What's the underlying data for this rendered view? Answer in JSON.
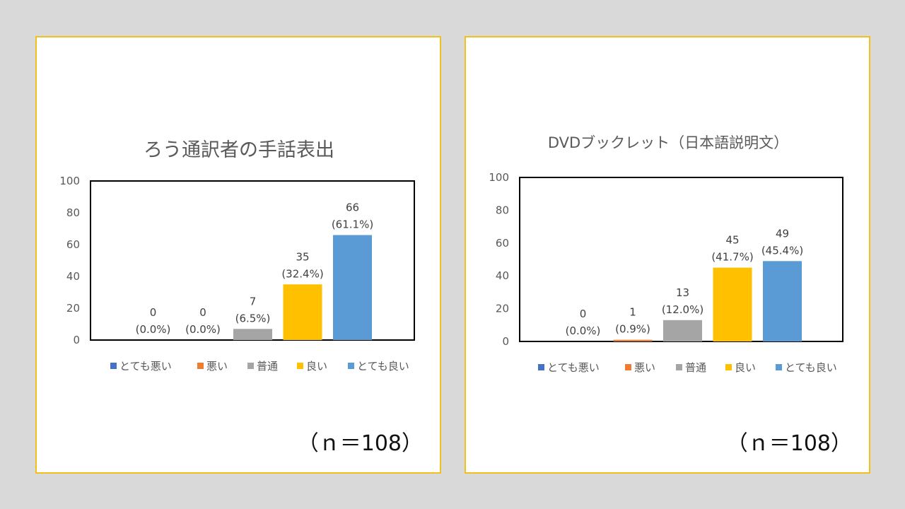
{
  "colors": {
    "background": "#d9d9d9",
    "panel_border": "#f0c020",
    "categories": [
      "#4472c4",
      "#ed7d31",
      "#a5a5a5",
      "#ffc000",
      "#5b9bd5"
    ]
  },
  "chart_data": [
    {
      "type": "bar",
      "title": "ろう通訳者の手話表出",
      "categories": [
        "とても悪い",
        "悪い",
        "普通",
        "良い",
        "とても良い"
      ],
      "values": [
        0,
        0,
        7,
        35,
        66
      ],
      "value_labels": [
        "0",
        "0",
        "7",
        "35",
        "66"
      ],
      "percent_labels": [
        "(0.0%)",
        "(0.0%)",
        "(6.5%)",
        "(32.4%)",
        "(61.1%)"
      ],
      "ylim": [
        0,
        100
      ],
      "yticks": [
        "0",
        "20",
        "40",
        "60",
        "80",
        "100"
      ],
      "legend": [
        "とても悪い",
        "悪い",
        "普通",
        "良い",
        "とても良い"
      ],
      "legend_position": "bottom",
      "grid": false,
      "note": "（ｎ＝108）"
    },
    {
      "type": "bar",
      "title": "DVDブックレット（日本語説明文）",
      "categories": [
        "とても悪い",
        "悪い",
        "普通",
        "良い",
        "とても良い"
      ],
      "values": [
        0,
        1,
        13,
        45,
        49
      ],
      "value_labels": [
        "0",
        "1",
        "13",
        "45",
        "49"
      ],
      "percent_labels": [
        "(0.0%)",
        "(0.9%)",
        "(12.0%)",
        "(41.7%)",
        "(45.4%)"
      ],
      "ylim": [
        0,
        100
      ],
      "yticks": [
        "0",
        "20",
        "40",
        "60",
        "80",
        "100"
      ],
      "legend": [
        "とても悪い",
        "悪い",
        "普通",
        "良い",
        "とても良い"
      ],
      "legend_position": "bottom",
      "grid": false,
      "note": "（ｎ＝108）"
    }
  ]
}
